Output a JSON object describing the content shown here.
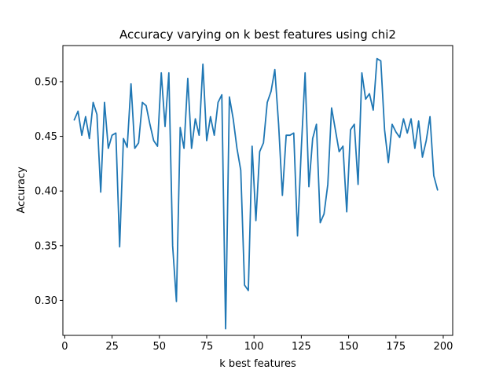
{
  "chart_data": {
    "type": "line",
    "title": "Accuracy varying on k best features using chi2",
    "xlabel": "k best features",
    "ylabel": "Accuracy",
    "xlim": [
      -1,
      205
    ],
    "ylim": [
      0.268,
      0.533
    ],
    "xticks": [
      0,
      25,
      50,
      75,
      100,
      125,
      150,
      175,
      200
    ],
    "xtick_labels": [
      "0",
      "25",
      "50",
      "75",
      "100",
      "125",
      "150",
      "175",
      "200"
    ],
    "yticks": [
      0.3,
      0.35,
      0.4,
      0.45,
      0.5
    ],
    "ytick_labels": [
      "0.30",
      "0.35",
      "0.40",
      "0.45",
      "0.50"
    ],
    "grid": false,
    "line_color": "#1f77b4",
    "series": [
      {
        "x": [
          5,
          7,
          9,
          11,
          13,
          15,
          17,
          19,
          21,
          23,
          25,
          27,
          29,
          31,
          33,
          35,
          37,
          39,
          41,
          43,
          45,
          47,
          49,
          51,
          53,
          55,
          57,
          59,
          61,
          63,
          65,
          67,
          69,
          71,
          73,
          75,
          77,
          79,
          81,
          83,
          85,
          87,
          89,
          91,
          93,
          95,
          97,
          99,
          101,
          103,
          105,
          107,
          109,
          111,
          113,
          115,
          117,
          119,
          121,
          123,
          125,
          127,
          129,
          131,
          133,
          135,
          137,
          139,
          141,
          143,
          145,
          147,
          149,
          151,
          153,
          155,
          157,
          159,
          161,
          163,
          165,
          167,
          169,
          171,
          173,
          175,
          177,
          179,
          181,
          183,
          185,
          187,
          189,
          191,
          193,
          195,
          197
        ],
        "y": [
          0.465,
          0.473,
          0.451,
          0.468,
          0.448,
          0.481,
          0.47,
          0.399,
          0.481,
          0.439,
          0.451,
          0.453,
          0.349,
          0.448,
          0.44,
          0.498,
          0.439,
          0.444,
          0.481,
          0.478,
          0.461,
          0.446,
          0.441,
          0.508,
          0.459,
          0.508,
          0.35,
          0.299,
          0.458,
          0.439,
          0.503,
          0.439,
          0.466,
          0.451,
          0.516,
          0.446,
          0.468,
          0.451,
          0.481,
          0.488,
          0.274,
          0.486,
          0.466,
          0.439,
          0.419,
          0.314,
          0.309,
          0.441,
          0.373,
          0.436,
          0.444,
          0.481,
          0.491,
          0.511,
          0.461,
          0.396,
          0.451,
          0.451,
          0.453,
          0.359,
          0.439,
          0.508,
          0.404,
          0.448,
          0.461,
          0.371,
          0.379,
          0.406,
          0.476,
          0.456,
          0.436,
          0.441,
          0.381,
          0.456,
          0.461,
          0.406,
          0.508,
          0.484,
          0.489,
          0.474,
          0.521,
          0.519,
          0.456,
          0.426,
          0.461,
          0.454,
          0.449,
          0.466,
          0.453,
          0.466,
          0.439,
          0.464,
          0.431,
          0.446,
          0.468,
          0.414,
          0.401
        ]
      }
    ]
  }
}
